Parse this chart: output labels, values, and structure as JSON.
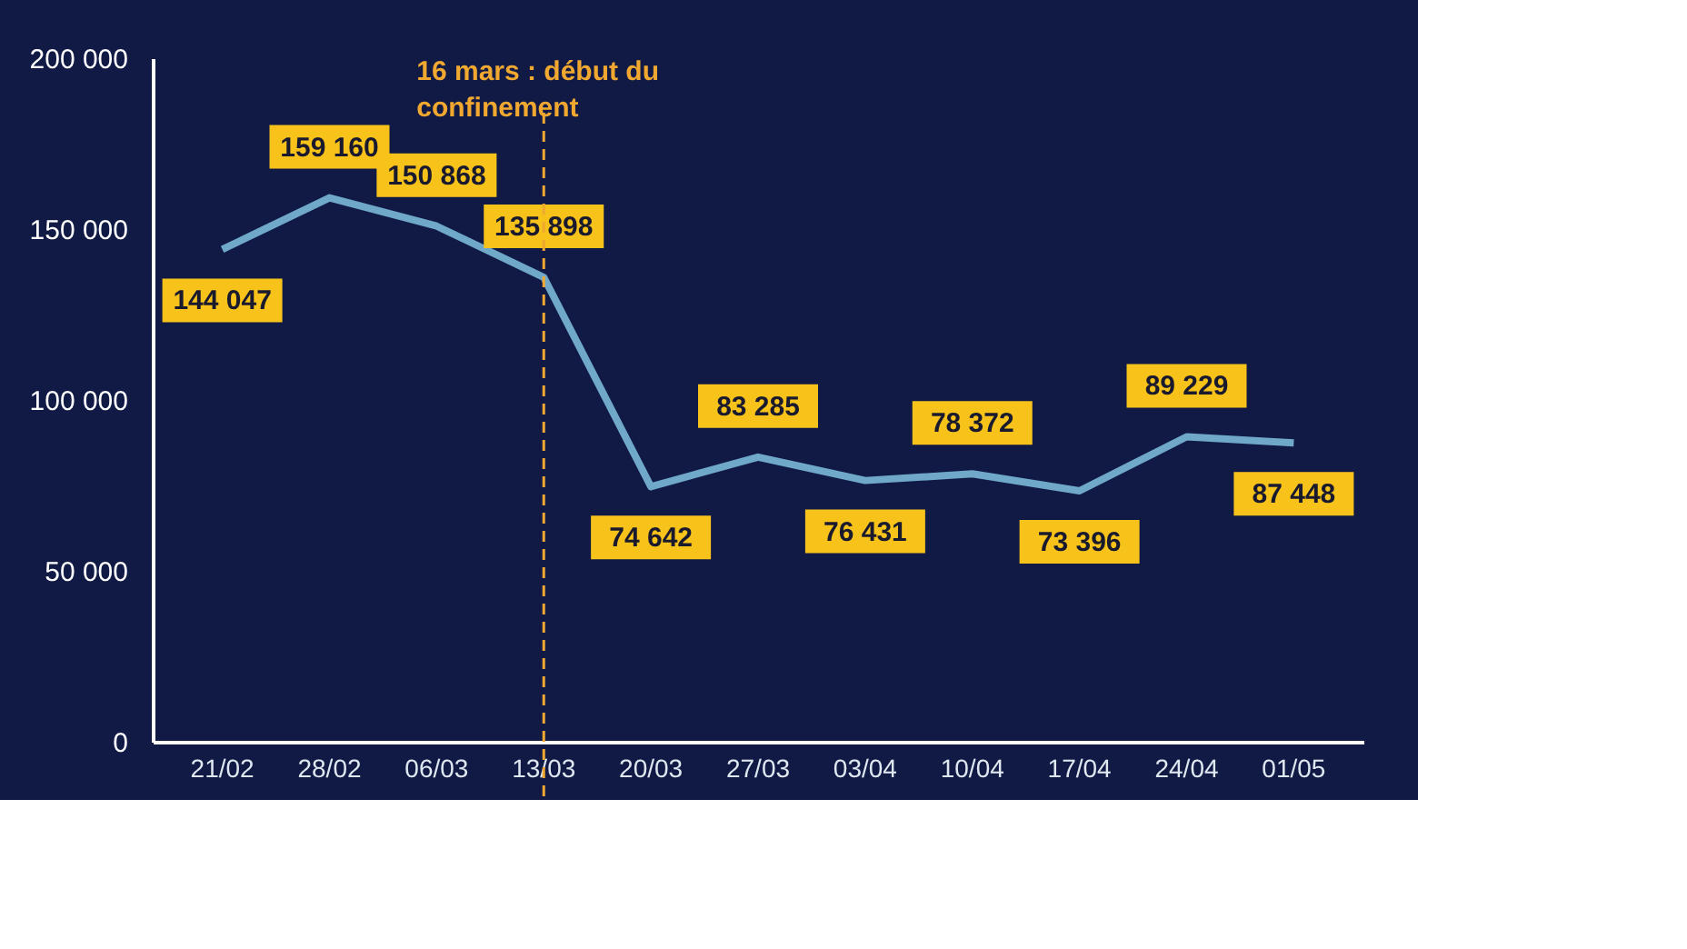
{
  "chart_data": {
    "type": "line",
    "categories": [
      "21/02",
      "28/02",
      "06/03",
      "13/03",
      "20/03",
      "27/03",
      "03/04",
      "10/04",
      "17/04",
      "24/04",
      "01/05"
    ],
    "series": [
      {
        "color": "#6fa8c8",
        "values": [
          144047,
          159160,
          150868,
          135898,
          74642,
          83285,
          76431,
          78372,
          73396,
          89229,
          87448
        ],
        "value_labels": [
          "144 047",
          "159 160",
          "150 868",
          "135 898",
          "74 642",
          "83 285",
          "76 431",
          "78 372",
          "73 396",
          "89 229",
          "87 448"
        ]
      }
    ],
    "ylim": [
      0,
      200000
    ],
    "yticks": [
      {
        "value": 0,
        "label": "0"
      },
      {
        "value": 50000,
        "label": "50 000"
      },
      {
        "value": 100000,
        "label": "100 000"
      },
      {
        "value": 150000,
        "label": "150 000"
      },
      {
        "value": 200000,
        "label": "200 000"
      }
    ],
    "ref_lines": [
      {
        "axis": "x",
        "value": "13/03",
        "label": "16 mars : début du confinement",
        "color": "#f0a830",
        "line_style": "dashed"
      }
    ],
    "grid": false,
    "marker": "none",
    "line_style": "solid"
  }
}
